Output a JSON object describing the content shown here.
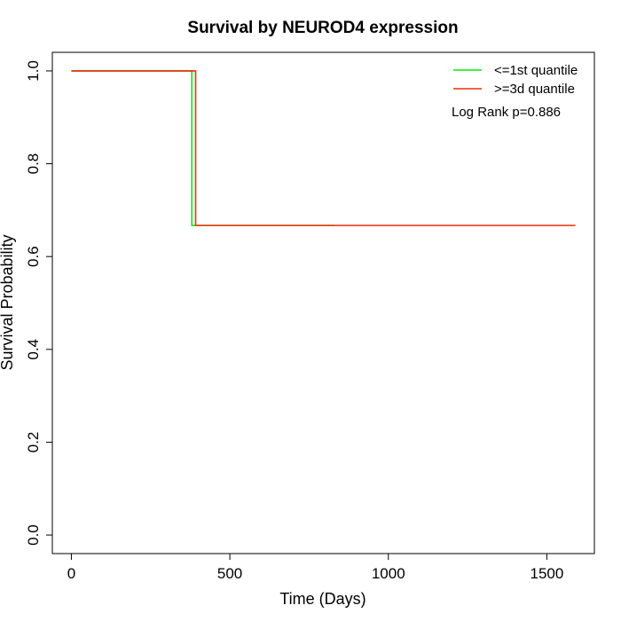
{
  "chart_data": {
    "type": "line",
    "title": "Survival by NEUROD4 expression",
    "xlabel": "Time (Days)",
    "ylabel": "Survival Probability",
    "xlim": [
      -60,
      1650
    ],
    "ylim": [
      -0.04,
      1.04
    ],
    "x_ticks": [
      0,
      500,
      1000,
      1500
    ],
    "y_ticks": [
      0.0,
      0.2,
      0.4,
      0.6,
      0.8,
      1.0
    ],
    "x_tick_labels": [
      "0",
      "500",
      "1000",
      "1500"
    ],
    "y_tick_labels": [
      "0.0",
      "0.2",
      "0.4",
      "0.6",
      "0.8",
      "1.0"
    ],
    "grid": false,
    "legend_position": "top-right",
    "series": [
      {
        "name": "<=1st quantile",
        "color": "#00ee00",
        "x": [
          0,
          380,
          380,
          830
        ],
        "y": [
          1.0,
          1.0,
          0.667,
          0.667
        ]
      },
      {
        "name": ">=3d quantile",
        "color": "#ee2c0c",
        "x": [
          0,
          392,
          392,
          1590
        ],
        "y": [
          1.0,
          1.0,
          0.667,
          0.667
        ]
      }
    ],
    "annotations": [
      "Log Rank p=0.886"
    ]
  }
}
